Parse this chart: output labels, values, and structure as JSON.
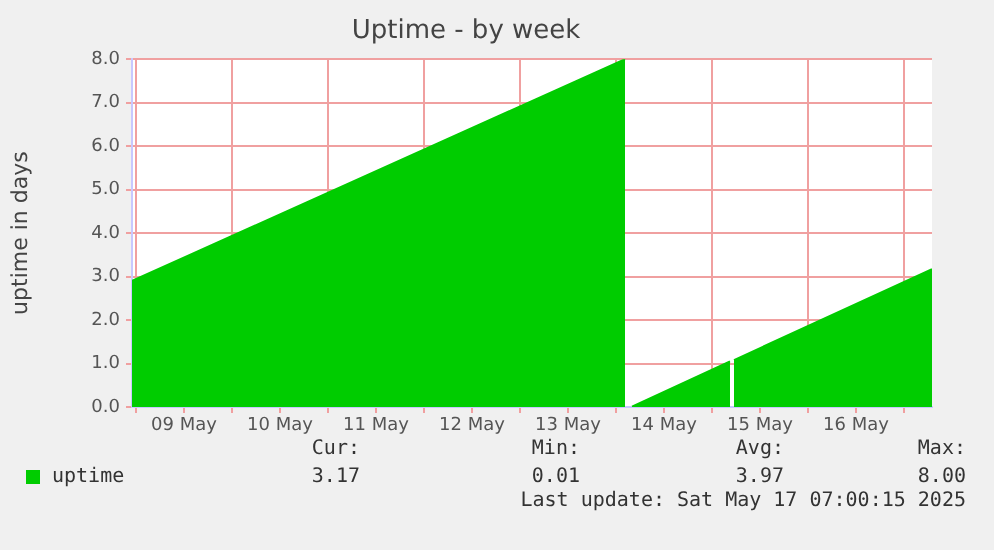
{
  "chart_data": {
    "type": "area",
    "title": "Uptime - by week",
    "ylabel": "uptime in days",
    "x": [
      "2025-05-08T23:00",
      "2025-05-14T02:15",
      "2025-05-14T03:00",
      "2025-05-14T04:00",
      "2025-05-15T04:30",
      "2025-05-15T05:00",
      "2025-05-15T05:30",
      "2025-05-17T07:00"
    ],
    "series": [
      {
        "name": "uptime",
        "color": "#00cc00",
        "values": [
          2.9,
          8.0,
          null,
          0.01,
          1.05,
          null,
          1.08,
          3.17
        ]
      }
    ],
    "xlim": [
      "2025-05-08T23:00",
      "2025-05-17T07:00"
    ],
    "xticks": [
      {
        "value": "2025-05-09T00:00",
        "label": null
      },
      {
        "value": "2025-05-09T12:00",
        "label": "09 May"
      },
      {
        "value": "2025-05-10T00:00",
        "label": null
      },
      {
        "value": "2025-05-10T12:00",
        "label": "10 May"
      },
      {
        "value": "2025-05-11T00:00",
        "label": null
      },
      {
        "value": "2025-05-11T12:00",
        "label": "11 May"
      },
      {
        "value": "2025-05-12T00:00",
        "label": null
      },
      {
        "value": "2025-05-12T12:00",
        "label": "12 May"
      },
      {
        "value": "2025-05-13T00:00",
        "label": null
      },
      {
        "value": "2025-05-13T12:00",
        "label": "13 May"
      },
      {
        "value": "2025-05-14T00:00",
        "label": null
      },
      {
        "value": "2025-05-14T12:00",
        "label": "14 May"
      },
      {
        "value": "2025-05-15T00:00",
        "label": null
      },
      {
        "value": "2025-05-15T12:00",
        "label": "15 May"
      },
      {
        "value": "2025-05-16T00:00",
        "label": null
      },
      {
        "value": "2025-05-16T12:00",
        "label": "16 May"
      },
      {
        "value": "2025-05-17T00:00",
        "label": null
      }
    ],
    "ylim": [
      0,
      8
    ],
    "yticks": [
      {
        "value": 0,
        "label": "0.0"
      },
      {
        "value": 1,
        "label": "1.0"
      },
      {
        "value": 2,
        "label": "2.0"
      },
      {
        "value": 3,
        "label": "3.0"
      },
      {
        "value": 4,
        "label": "4.0"
      },
      {
        "value": 5,
        "label": "5.0"
      },
      {
        "value": 6,
        "label": "6.0"
      },
      {
        "value": 7,
        "label": "7.0"
      },
      {
        "value": 8,
        "label": "8.0"
      }
    ],
    "grid": true,
    "legend": "bottom left",
    "annotations": [
      "Cur:",
      "Min:",
      "Avg:",
      "Max:",
      "3.17",
      "0.01",
      "3.97",
      "8.00",
      "Last update: Sat May 17 07:00:15 2025"
    ]
  }
}
